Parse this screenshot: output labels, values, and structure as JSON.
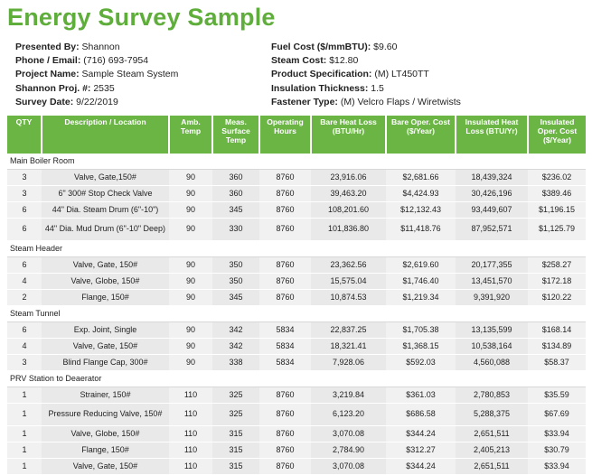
{
  "title": "Energy Survey Sample",
  "info_left": [
    {
      "label": "Presented By:",
      "value": "Shannon"
    },
    {
      "label": "Phone / Email:",
      "value": "(716) 693-7954"
    },
    {
      "label": "Project Name:",
      "value": "Sample Steam System"
    },
    {
      "label": "Shannon Proj. #:",
      "value": "2535"
    },
    {
      "label": "Survey Date:",
      "value": "9/22/2019"
    }
  ],
  "info_right": [
    {
      "label": "Fuel Cost ($/mmBTU):",
      "value": "$9.60"
    },
    {
      "label": "Steam Cost:",
      "value": "$12.80"
    },
    {
      "label": "Product Specification:",
      "value": "(M) LT450TT"
    },
    {
      "label": "Insulation Thickness:",
      "value": "1.5"
    },
    {
      "label": "Fastener Type:",
      "value": "(M) Velcro Flaps / Wiretwists"
    }
  ],
  "columns": [
    "QTY",
    "Description / Location",
    "Amb. Temp",
    "Meas. Surface Temp",
    "Operating Hours",
    "Bare Heat Loss (BTU/Hr)",
    "Bare Oper. Cost ($/Year)",
    "Insulated Heat Loss (BTU/Yr)",
    "Insulated Oper. Cost ($/Year)"
  ],
  "sections": [
    {
      "name": "Main Boiler Room",
      "rows": [
        [
          "3",
          "Valve, Gate,150#",
          "90",
          "360",
          "8760",
          "23,916.06",
          "$2,681.66",
          "18,439,324",
          "$236.02"
        ],
        [
          "3",
          "6\" 300# Stop Check Valve",
          "90",
          "360",
          "8760",
          "39,463.20",
          "$4,424.93",
          "30,426,196",
          "$389.46"
        ],
        [
          "6",
          "44\" Dia. Steam Drum (6\"-10\")",
          "90",
          "345",
          "8760",
          "108,201.60",
          "$12,132.43",
          "93,449,607",
          "$1,196.15"
        ],
        [
          "6",
          "44\" Dia. Mud Drum (6\"-10\" Deep)",
          "90",
          "330",
          "8760",
          "101,836.80",
          "$11,418.76",
          "87,952,571",
          "$1,125.79"
        ]
      ]
    },
    {
      "name": "Steam Header",
      "rows": [
        [
          "6",
          "Valve, Gate, 150#",
          "90",
          "350",
          "8760",
          "23,362.56",
          "$2,619.60",
          "20,177,355",
          "$258.27"
        ],
        [
          "4",
          "Valve, Globe, 150#",
          "90",
          "350",
          "8760",
          "15,575.04",
          "$1,746.40",
          "13,451,570",
          "$172.18"
        ],
        [
          "2",
          "Flange, 150#",
          "90",
          "345",
          "8760",
          "10,874.53",
          "$1,219.34",
          "9,391,920",
          "$120.22"
        ]
      ]
    },
    {
      "name": "Steam Tunnel",
      "rows": [
        [
          "6",
          "Exp. Joint, Single",
          "90",
          "342",
          "5834",
          "22,837.25",
          "$1,705.38",
          "13,135,599",
          "$168.14"
        ],
        [
          "4",
          "Valve, Gate, 150#",
          "90",
          "342",
          "5834",
          "18,321.41",
          "$1,368.15",
          "10,538,164",
          "$134.89"
        ],
        [
          "3",
          "Blind Flange Cap, 300#",
          "90",
          "338",
          "5834",
          "7,928.06",
          "$592.03",
          "4,560,088",
          "$58.37"
        ]
      ]
    },
    {
      "name": "PRV Station to Deaerator",
      "rows": [
        [
          "1",
          "Strainer, 150#",
          "110",
          "325",
          "8760",
          "3,219.84",
          "$361.03",
          "2,780,853",
          "$35.59"
        ],
        [
          "1",
          "Pressure Reducing Valve, 150#",
          "110",
          "325",
          "8760",
          "6,123.20",
          "$686.58",
          "5,288,375",
          "$67.69"
        ],
        [
          "1",
          "Valve, Globe, 150#",
          "110",
          "315",
          "8760",
          "3,070.08",
          "$344.24",
          "2,651,511",
          "$33.94"
        ],
        [
          "1",
          "Flange, 150#",
          "110",
          "315",
          "8760",
          "2,784.90",
          "$312.27",
          "2,405,213",
          "$30.79"
        ],
        [
          "1",
          "Valve, Gate, 150#",
          "110",
          "315",
          "8760",
          "3,070.08",
          "$344.24",
          "2,651,511",
          "$33.94"
        ]
      ]
    }
  ]
}
